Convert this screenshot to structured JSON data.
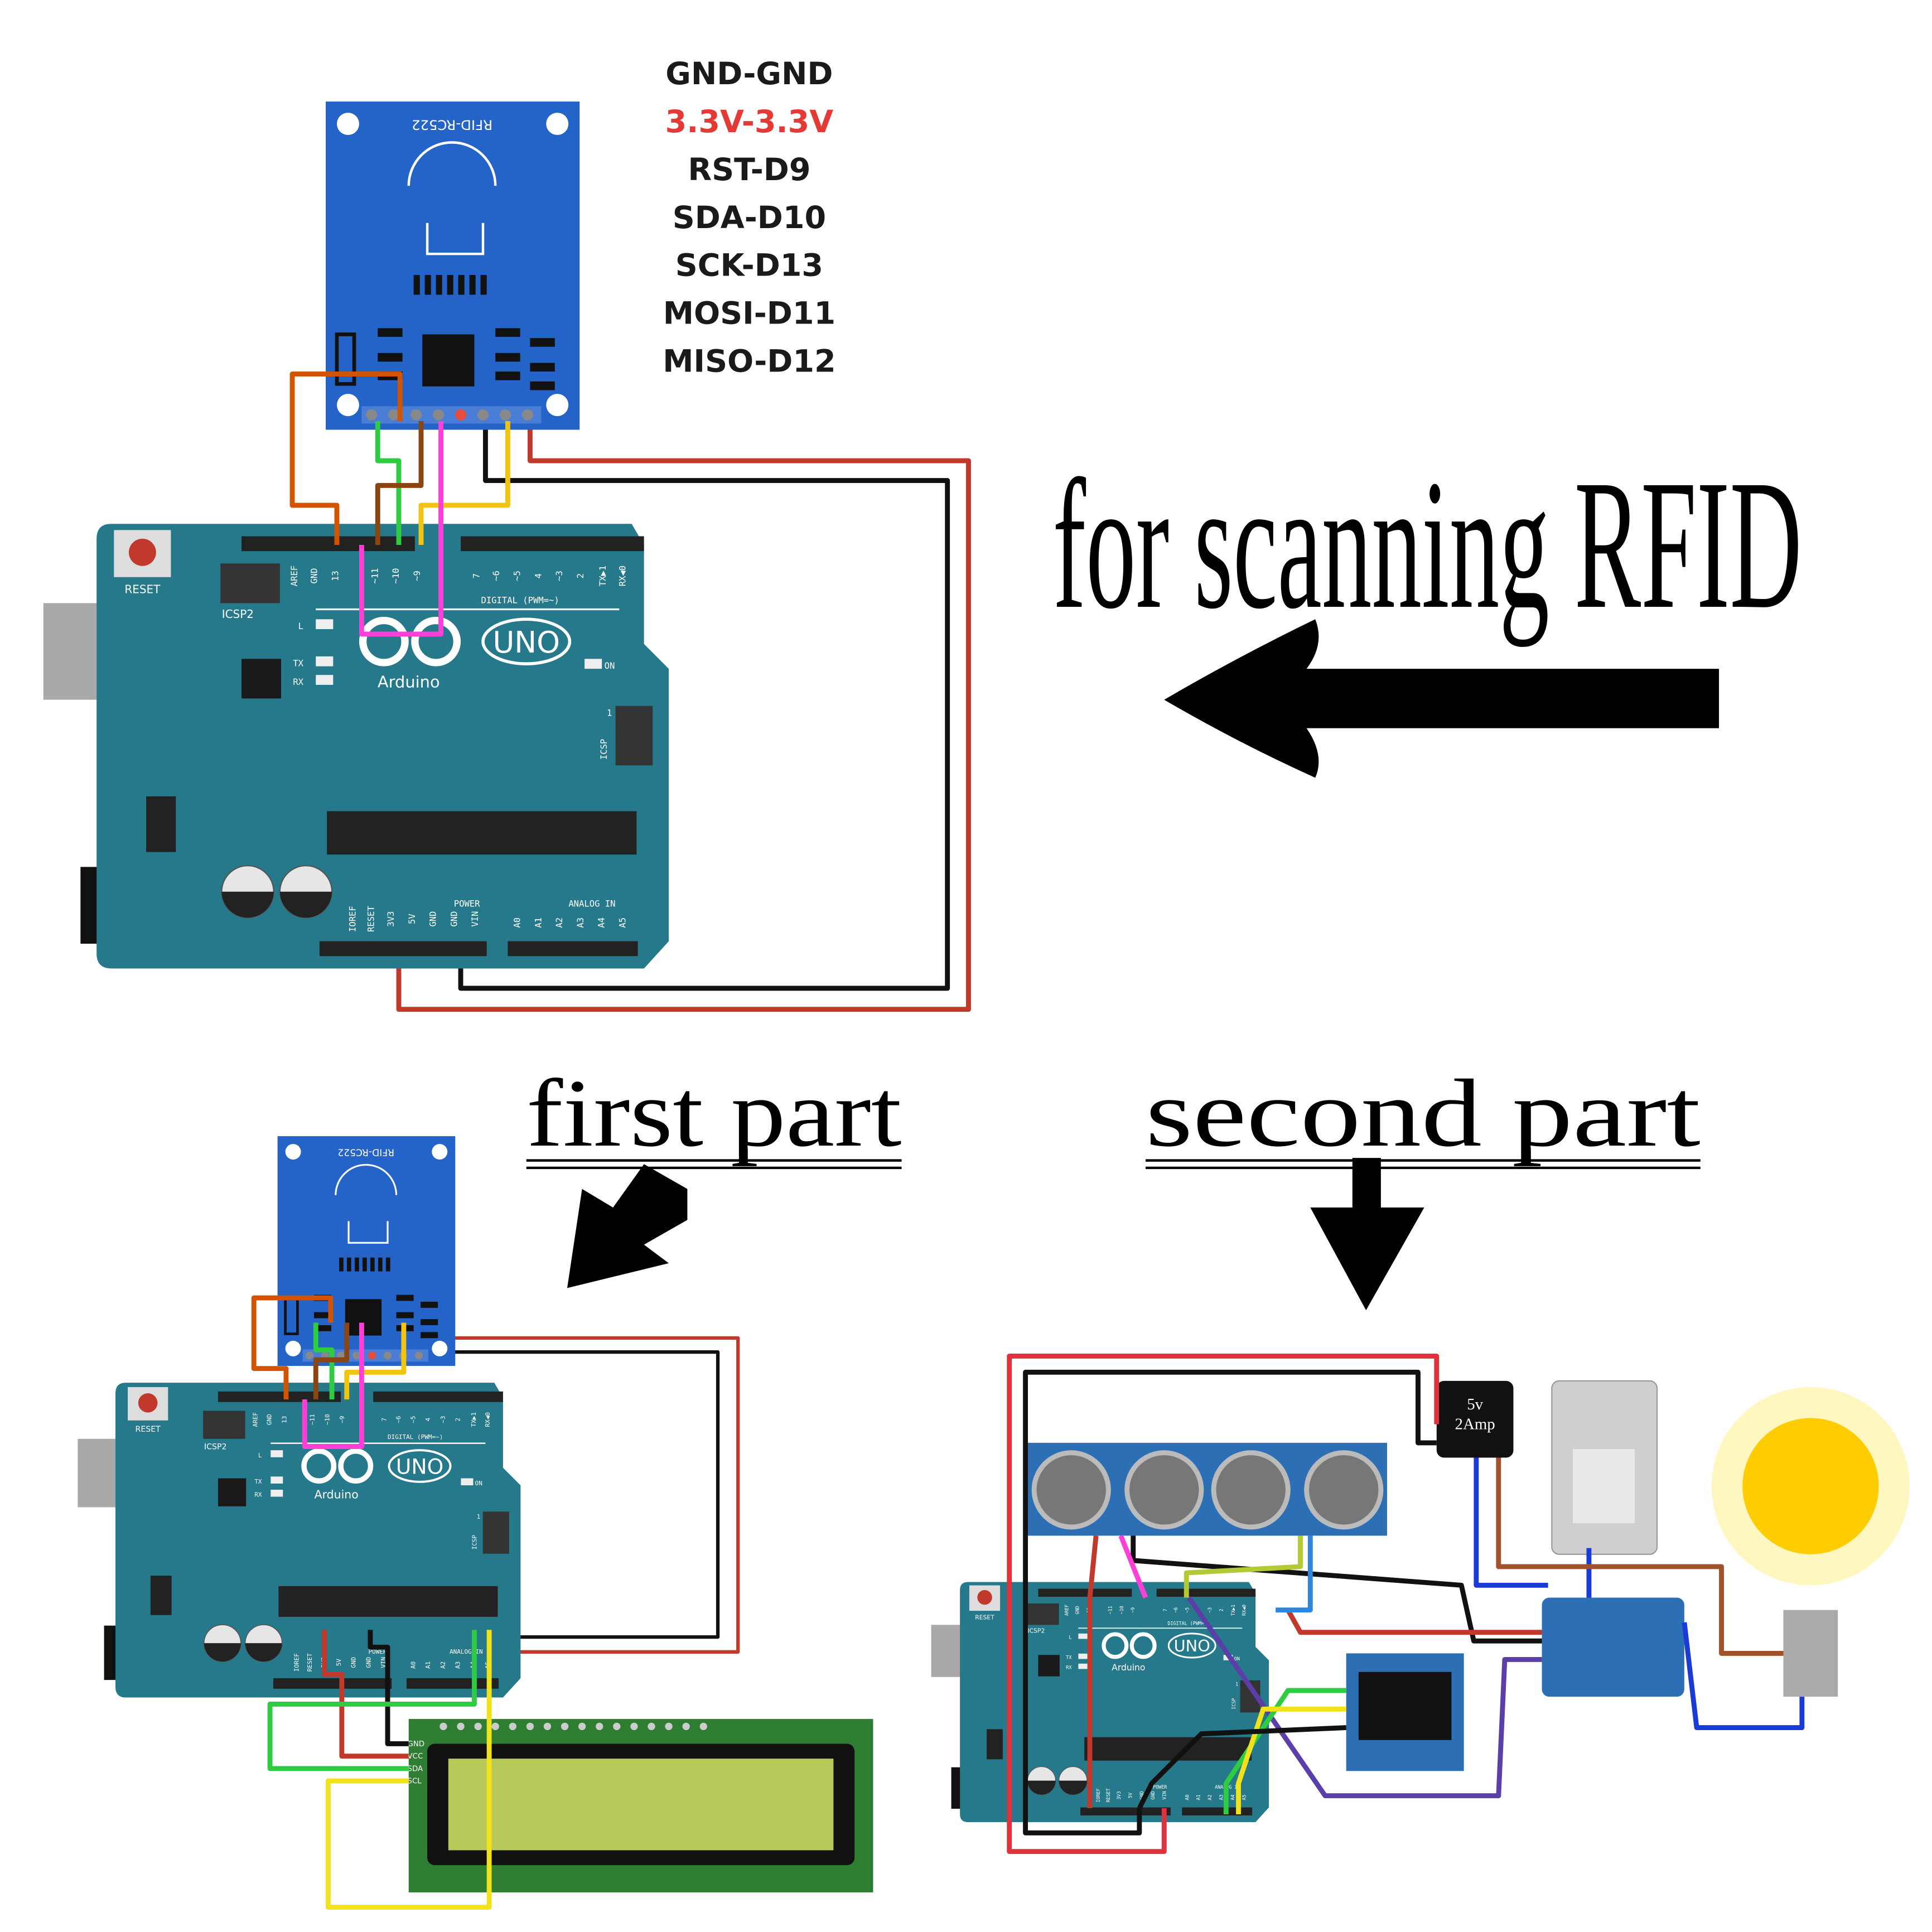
{
  "pin_map": [
    "GND-GND",
    "3.3V-3.3V",
    "RST-D9",
    "SDA-D10",
    "SCK-D13",
    "MOSI-D11",
    "MISO-D12"
  ],
  "headline": "for scanning RFID",
  "first_part": {
    "title": "first part",
    "lcd_pins": [
      "GND",
      "VCC",
      "SDA",
      "SCL"
    ]
  },
  "second_part": {
    "title": "second part",
    "adapter": [
      "5v",
      "2Amp"
    ]
  },
  "rfid": {
    "label": "RFID-RC522"
  },
  "arduino": {
    "reset": "RESET",
    "icsp2": "ICSP2",
    "digital_pins": [
      "AREF",
      "GND",
      "13",
      "~11",
      "~10",
      "~9",
      "7",
      "~6",
      "~5",
      "4",
      "~3",
      "2",
      "TX▶1",
      "RX◀0"
    ],
    "digital": "DIGITAL (PWM=~)",
    "led_labels": [
      "L",
      "TX",
      "RX"
    ],
    "uno": "UNO",
    "brand": "Arduino",
    "on": "ON",
    "icsp": "ICSP",
    "icsp_pin": "1",
    "power_pins": [
      "IOREF",
      "RESET",
      "3V3",
      "5V",
      "GND",
      "GND",
      "VIN"
    ],
    "power": "POWER",
    "analog": "ANALOG IN",
    "analog_pins": [
      "A0",
      "A1",
      "A2",
      "A3",
      "A4",
      "A5"
    ]
  }
}
